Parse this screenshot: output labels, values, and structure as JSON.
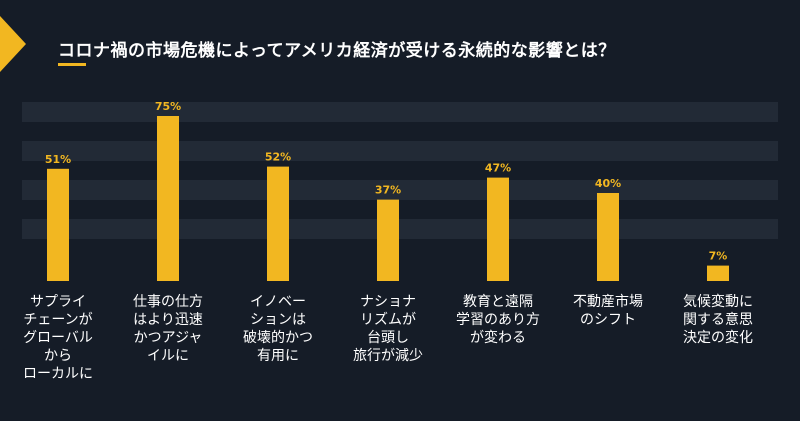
{
  "title": "コロナ禍の市場危機によってアメリカ経済が受ける永続的な影響とは？",
  "colors": {
    "background": "#151c27",
    "accent": "#f2b721",
    "band": "#222a36",
    "text": "#ffffff"
  },
  "chart_data": {
    "type": "bar",
    "title": "コロナ禍の市場危機によってアメリカ経済が受ける永続的な影響とは？",
    "categories": [
      "サプライ\nチェーンが\nグローバル\nから\nローカルに",
      "仕事の仕方\nはより迅速\nかつアジャ\nイルに",
      "イノベー\nションは\n破壊的かつ\n有用に",
      "ナショナ\nリズムが\n台頭し\n旅行が減少",
      "教育と遠隔\n学習のあり方\nが変わる",
      "不動産市場\nのシフト",
      "気候変動に\n関する意思\n決定の変化"
    ],
    "values": [
      51,
      75,
      52,
      37,
      47,
      40,
      7
    ],
    "data_labels": [
      "51%",
      "75%",
      "52%",
      "37%",
      "47%",
      "40%",
      "7%"
    ],
    "ylim": [
      0,
      75
    ],
    "grid": "horizontal bands",
    "xlabel": "",
    "ylabel": ""
  }
}
